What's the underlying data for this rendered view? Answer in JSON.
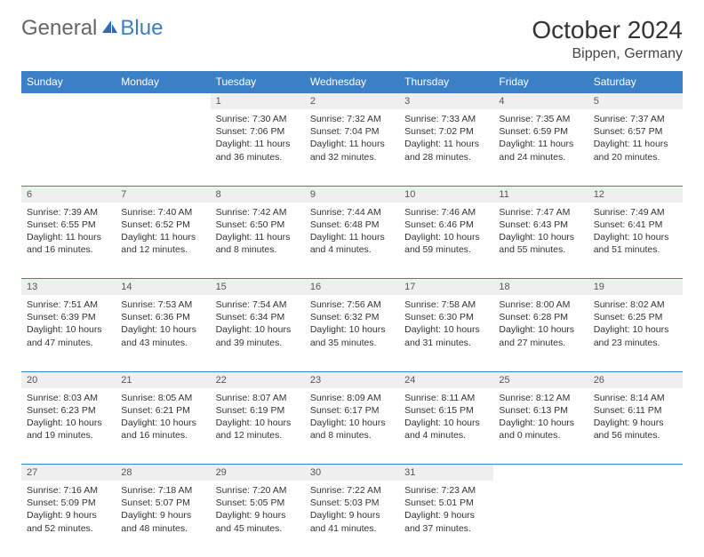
{
  "logo": {
    "part1": "General",
    "part2": "Blue"
  },
  "title": "October 2024",
  "location": "Bippen, Germany",
  "colors": {
    "header_bg": "#3b7fc4",
    "header_text": "#ffffff",
    "daynum_bg": "#efefef",
    "border": "#3b7fc4",
    "logo_gray": "#666666",
    "logo_blue": "#3b7fc4"
  },
  "dayHeaders": [
    "Sunday",
    "Monday",
    "Tuesday",
    "Wednesday",
    "Thursday",
    "Friday",
    "Saturday"
  ],
  "weeks": [
    [
      null,
      null,
      {
        "n": "1",
        "sr": "7:30 AM",
        "ss": "7:06 PM",
        "dl": "11 hours and 36 minutes."
      },
      {
        "n": "2",
        "sr": "7:32 AM",
        "ss": "7:04 PM",
        "dl": "11 hours and 32 minutes."
      },
      {
        "n": "3",
        "sr": "7:33 AM",
        "ss": "7:02 PM",
        "dl": "11 hours and 28 minutes."
      },
      {
        "n": "4",
        "sr": "7:35 AM",
        "ss": "6:59 PM",
        "dl": "11 hours and 24 minutes."
      },
      {
        "n": "5",
        "sr": "7:37 AM",
        "ss": "6:57 PM",
        "dl": "11 hours and 20 minutes."
      }
    ],
    [
      {
        "n": "6",
        "sr": "7:39 AM",
        "ss": "6:55 PM",
        "dl": "11 hours and 16 minutes."
      },
      {
        "n": "7",
        "sr": "7:40 AM",
        "ss": "6:52 PM",
        "dl": "11 hours and 12 minutes."
      },
      {
        "n": "8",
        "sr": "7:42 AM",
        "ss": "6:50 PM",
        "dl": "11 hours and 8 minutes."
      },
      {
        "n": "9",
        "sr": "7:44 AM",
        "ss": "6:48 PM",
        "dl": "11 hours and 4 minutes."
      },
      {
        "n": "10",
        "sr": "7:46 AM",
        "ss": "6:46 PM",
        "dl": "10 hours and 59 minutes."
      },
      {
        "n": "11",
        "sr": "7:47 AM",
        "ss": "6:43 PM",
        "dl": "10 hours and 55 minutes."
      },
      {
        "n": "12",
        "sr": "7:49 AM",
        "ss": "6:41 PM",
        "dl": "10 hours and 51 minutes."
      }
    ],
    [
      {
        "n": "13",
        "sr": "7:51 AM",
        "ss": "6:39 PM",
        "dl": "10 hours and 47 minutes."
      },
      {
        "n": "14",
        "sr": "7:53 AM",
        "ss": "6:36 PM",
        "dl": "10 hours and 43 minutes."
      },
      {
        "n": "15",
        "sr": "7:54 AM",
        "ss": "6:34 PM",
        "dl": "10 hours and 39 minutes."
      },
      {
        "n": "16",
        "sr": "7:56 AM",
        "ss": "6:32 PM",
        "dl": "10 hours and 35 minutes."
      },
      {
        "n": "17",
        "sr": "7:58 AM",
        "ss": "6:30 PM",
        "dl": "10 hours and 31 minutes."
      },
      {
        "n": "18",
        "sr": "8:00 AM",
        "ss": "6:28 PM",
        "dl": "10 hours and 27 minutes."
      },
      {
        "n": "19",
        "sr": "8:02 AM",
        "ss": "6:25 PM",
        "dl": "10 hours and 23 minutes."
      }
    ],
    [
      {
        "n": "20",
        "sr": "8:03 AM",
        "ss": "6:23 PM",
        "dl": "10 hours and 19 minutes."
      },
      {
        "n": "21",
        "sr": "8:05 AM",
        "ss": "6:21 PM",
        "dl": "10 hours and 16 minutes."
      },
      {
        "n": "22",
        "sr": "8:07 AM",
        "ss": "6:19 PM",
        "dl": "10 hours and 12 minutes."
      },
      {
        "n": "23",
        "sr": "8:09 AM",
        "ss": "6:17 PM",
        "dl": "10 hours and 8 minutes."
      },
      {
        "n": "24",
        "sr": "8:11 AM",
        "ss": "6:15 PM",
        "dl": "10 hours and 4 minutes."
      },
      {
        "n": "25",
        "sr": "8:12 AM",
        "ss": "6:13 PM",
        "dl": "10 hours and 0 minutes."
      },
      {
        "n": "26",
        "sr": "8:14 AM",
        "ss": "6:11 PM",
        "dl": "9 hours and 56 minutes."
      }
    ],
    [
      {
        "n": "27",
        "sr": "7:16 AM",
        "ss": "5:09 PM",
        "dl": "9 hours and 52 minutes."
      },
      {
        "n": "28",
        "sr": "7:18 AM",
        "ss": "5:07 PM",
        "dl": "9 hours and 48 minutes."
      },
      {
        "n": "29",
        "sr": "7:20 AM",
        "ss": "5:05 PM",
        "dl": "9 hours and 45 minutes."
      },
      {
        "n": "30",
        "sr": "7:22 AM",
        "ss": "5:03 PM",
        "dl": "9 hours and 41 minutes."
      },
      {
        "n": "31",
        "sr": "7:23 AM",
        "ss": "5:01 PM",
        "dl": "9 hours and 37 minutes."
      },
      null,
      null
    ]
  ],
  "labels": {
    "sunrise": "Sunrise:",
    "sunset": "Sunset:",
    "daylight": "Daylight:"
  }
}
